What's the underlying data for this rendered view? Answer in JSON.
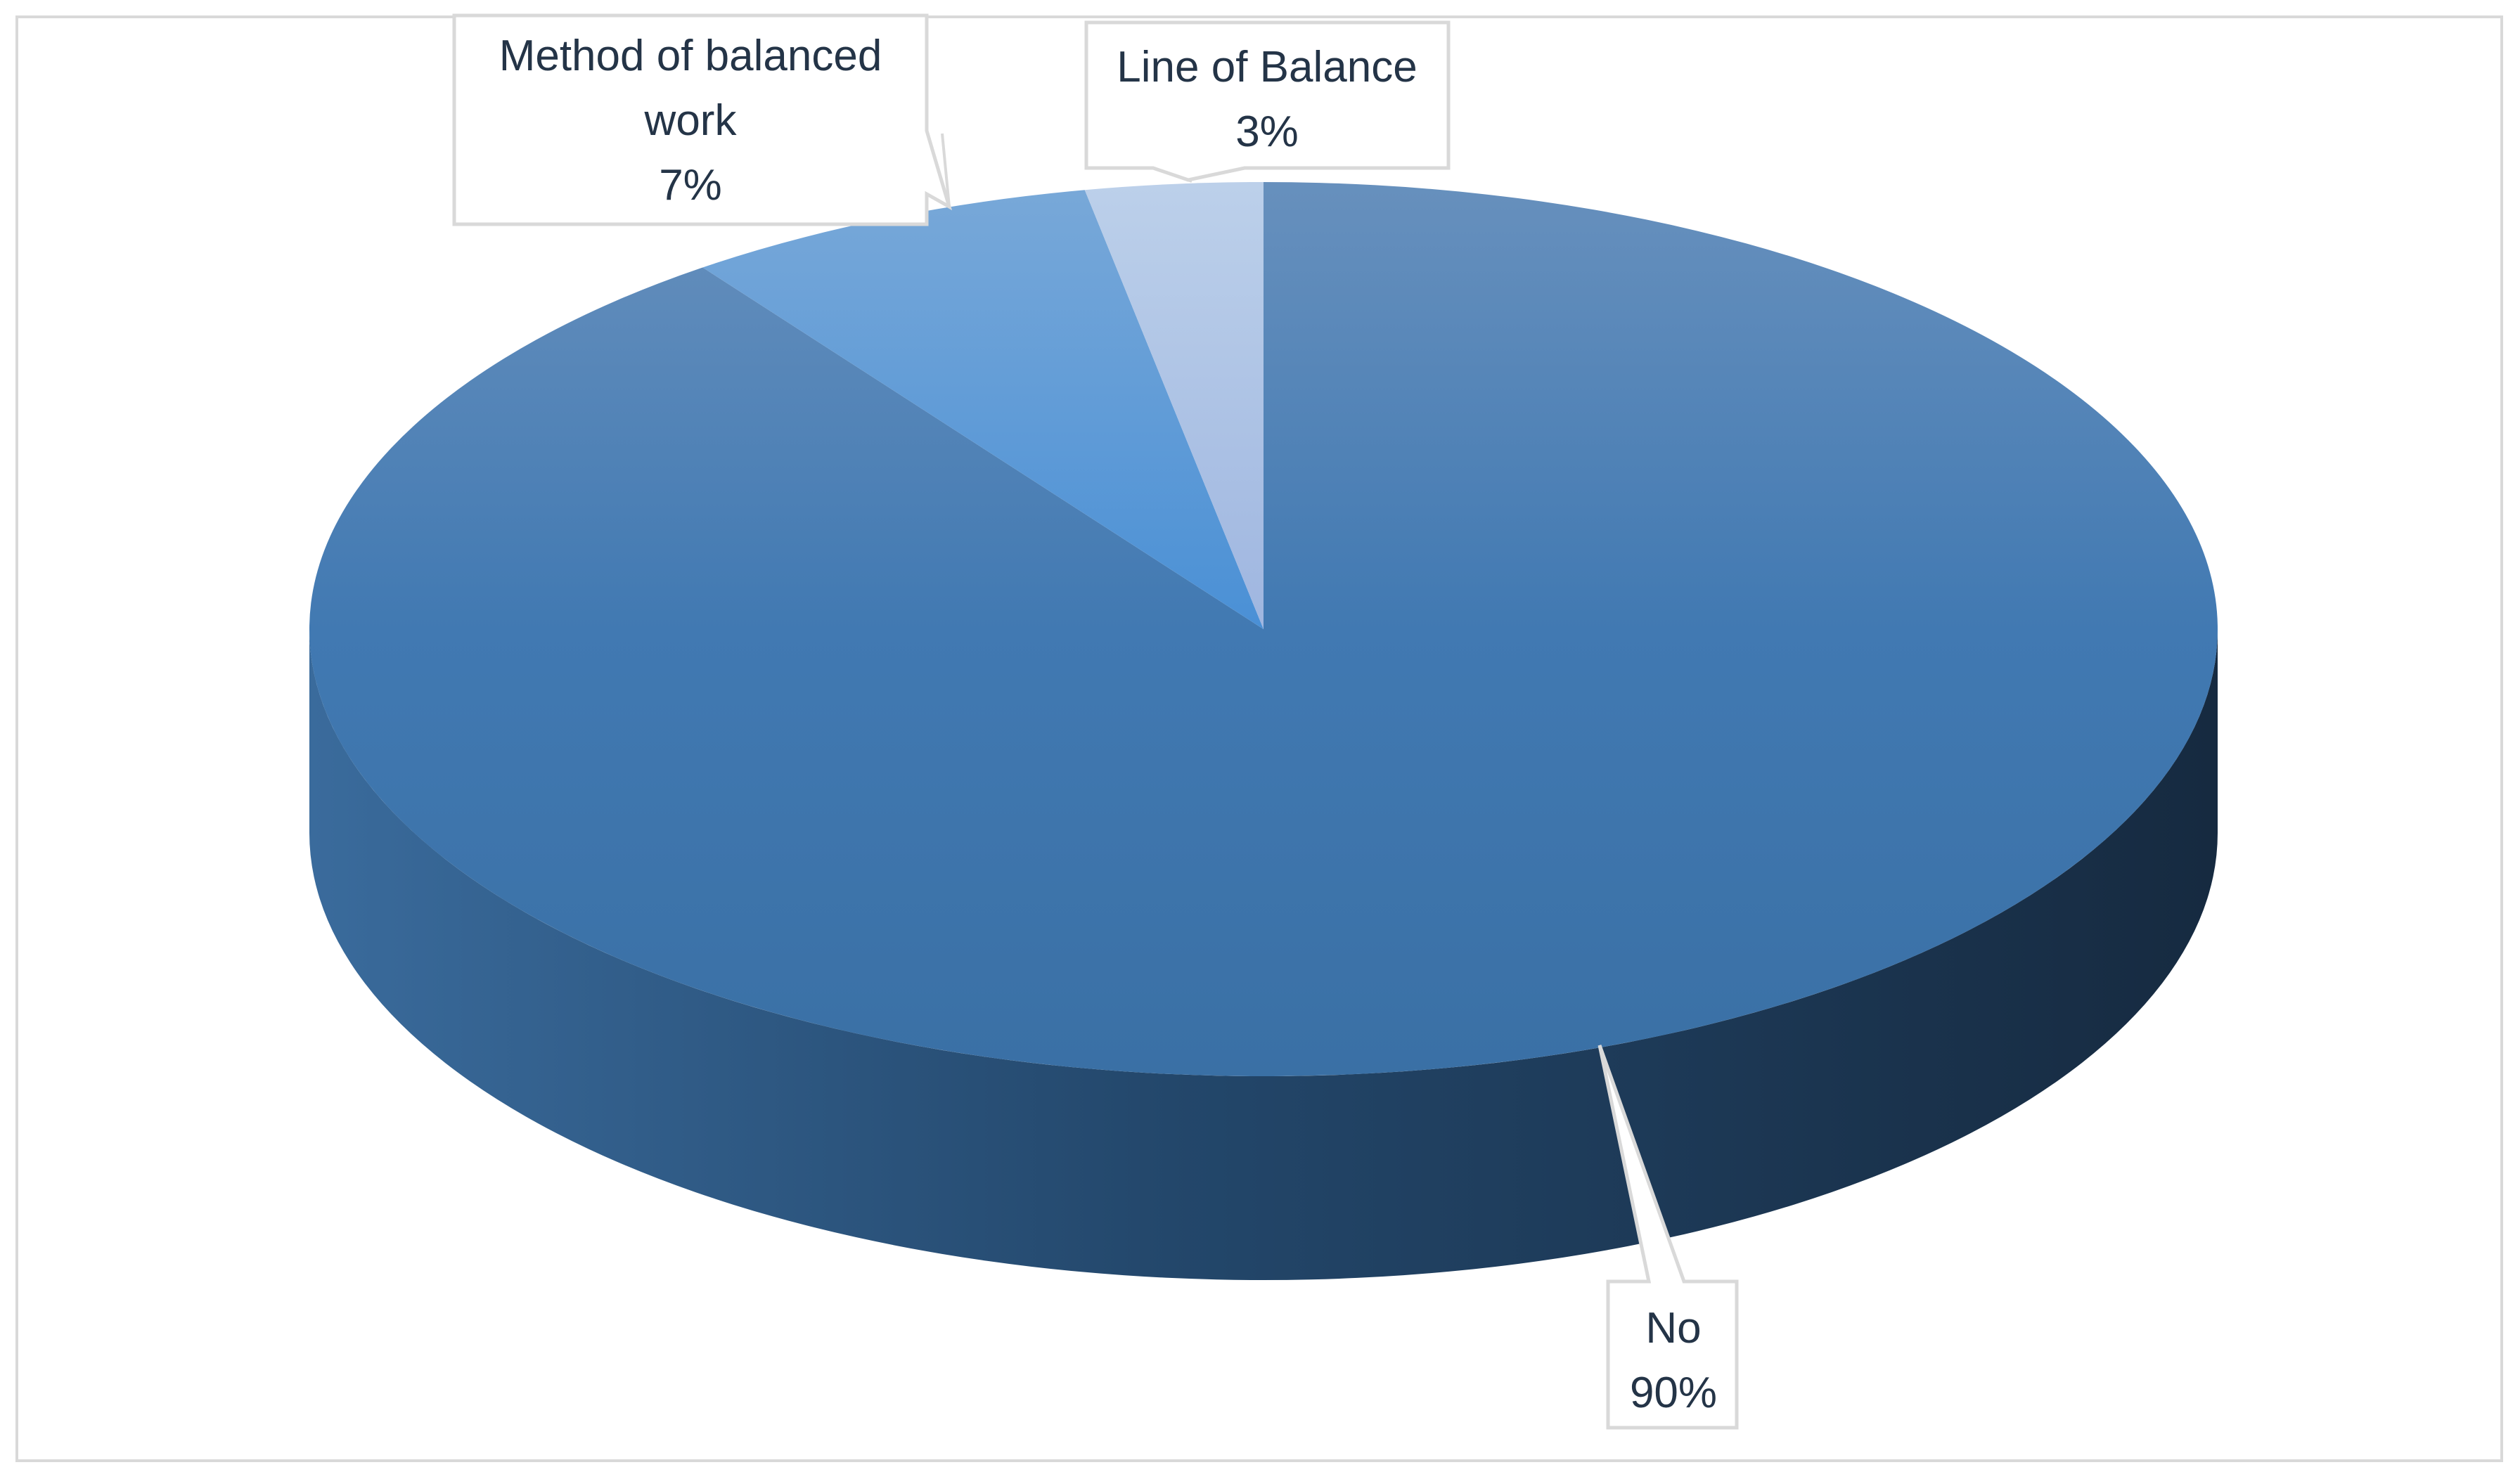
{
  "chart_data": {
    "type": "pie",
    "style": "3d",
    "slices": [
      {
        "label": "No",
        "value": 90,
        "pct_label": "90%",
        "color": "#3d72ad"
      },
      {
        "label": "Method of balanced work",
        "value": 7,
        "pct_label": "7%",
        "color": "#5b9bd5"
      },
      {
        "label": "Line of Balance",
        "value": 3,
        "pct_label": "3%",
        "color": "#aec4e6"
      }
    ],
    "callouts": [
      {
        "lines": [
          "Method of balanced",
          "work",
          "7%"
        ]
      },
      {
        "lines": [
          "Line of Balance",
          "3%"
        ]
      },
      {
        "lines": [
          "No",
          "90%"
        ]
      }
    ],
    "title": "",
    "legend": "none",
    "label_color": "#243447",
    "border_color": "#d9d9d9"
  }
}
